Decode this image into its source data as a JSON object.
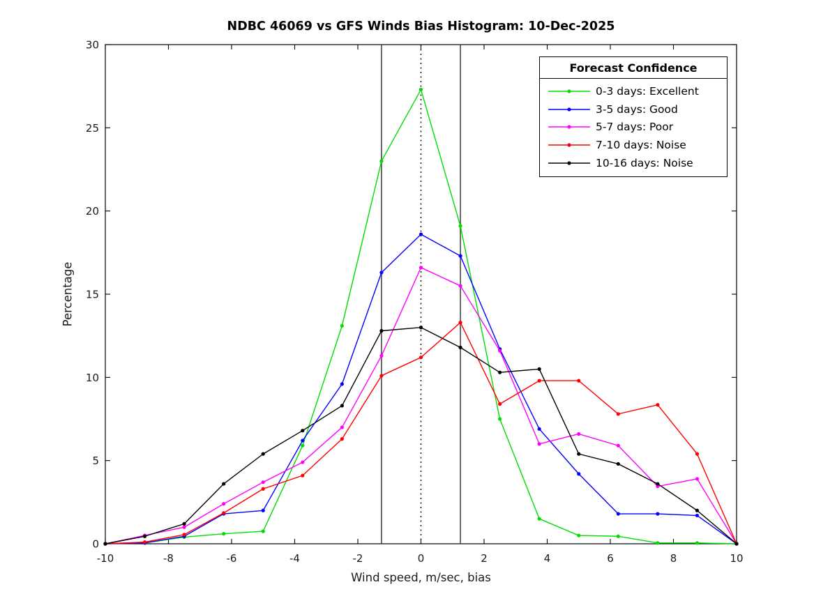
{
  "chart_data": {
    "type": "line",
    "title": "NDBC 46069 vs GFS Winds Bias Histogram: 10-Dec-2025",
    "xlabel": "Wind speed, m/sec, bias",
    "ylabel": "Percentage",
    "xlim": [
      -10,
      10
    ],
    "ylim": [
      0,
      30
    ],
    "x_ticks": [
      -10,
      -8,
      -6,
      -4,
      -2,
      0,
      2,
      4,
      6,
      8,
      10
    ],
    "y_ticks": [
      0,
      5,
      10,
      15,
      20,
      25,
      30
    ],
    "grid": "off",
    "legend_title": "Forecast Confidence",
    "legend_position": "top-right",
    "x": [
      -10,
      -8.75,
      -7.5,
      -6.25,
      -5,
      -3.75,
      -2.5,
      -1.25,
      0,
      1.25,
      2.5,
      3.75,
      5,
      6.25,
      7.5,
      8.75,
      10
    ],
    "series": [
      {
        "name": "0-3 days: Excellent",
        "color": "#00dd00",
        "values": [
          0,
          0.05,
          0.4,
          0.6,
          0.75,
          5.9,
          13.1,
          23.0,
          27.3,
          19.1,
          7.5,
          1.5,
          0.5,
          0.45,
          0.05,
          0.05,
          0
        ]
      },
      {
        "name": "3-5 days: Good",
        "color": "#0000ff",
        "values": [
          0,
          0.05,
          0.45,
          1.8,
          2.0,
          6.2,
          9.6,
          16.3,
          18.6,
          17.3,
          11.7,
          6.9,
          4.2,
          1.8,
          1.8,
          1.7,
          0
        ]
      },
      {
        "name": "5-7 days: Poor",
        "color": "#ff00ff",
        "values": [
          0,
          0.5,
          1.0,
          2.4,
          3.7,
          4.9,
          7.0,
          11.3,
          16.6,
          15.5,
          11.6,
          6.0,
          6.6,
          5.9,
          3.45,
          3.9,
          0
        ]
      },
      {
        "name": "7-10 days: Noise",
        "color": "#ff0000",
        "values": [
          0,
          0.1,
          0.55,
          1.85,
          3.3,
          4.1,
          6.3,
          10.1,
          11.2,
          13.3,
          8.4,
          9.8,
          9.8,
          7.8,
          8.35,
          5.4,
          0
        ]
      },
      {
        "name": "10-16 days: Noise",
        "color": "#000000",
        "values": [
          0,
          0.45,
          1.2,
          3.6,
          5.4,
          6.8,
          8.3,
          12.8,
          13.0,
          11.8,
          10.3,
          10.5,
          5.4,
          4.8,
          3.6,
          2.0,
          0
        ]
      }
    ],
    "reference_lines": {
      "solid_x": [
        -1.25,
        1.25
      ],
      "dotted_x": [
        0
      ]
    }
  }
}
